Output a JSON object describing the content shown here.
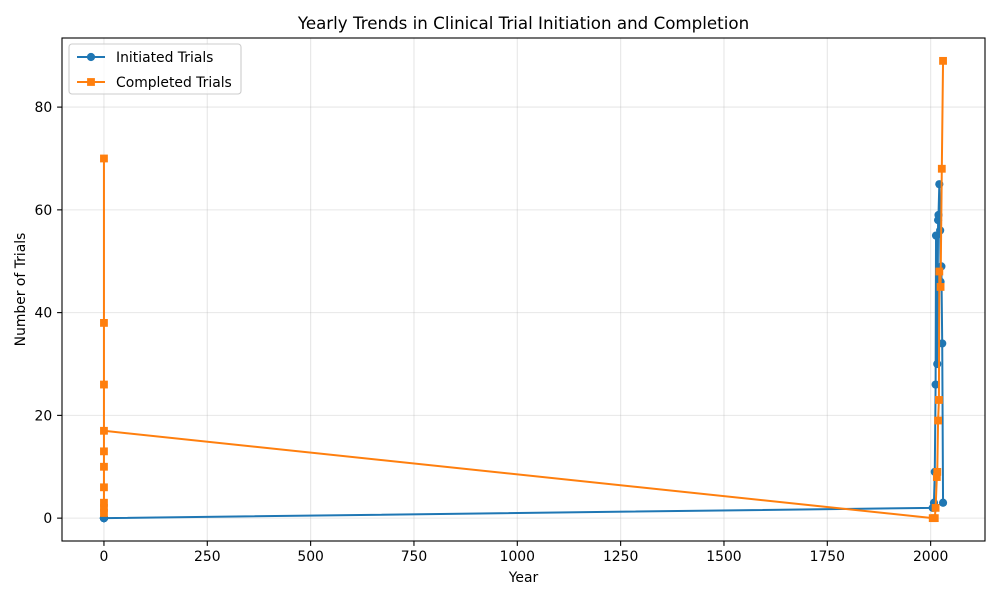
{
  "chart_data": {
    "type": "line",
    "title": "Yearly Trends in Clinical Trial Initiation and Completion",
    "xlabel": "Year",
    "ylabel": "Number of Trials",
    "xlim": [
      -101.5,
      2131.5
    ],
    "ylim": [
      -4.45,
      93.45
    ],
    "xticks": [
      0,
      250,
      500,
      750,
      1000,
      1250,
      1500,
      1750,
      2000
    ],
    "yticks": [
      0,
      20,
      40,
      60,
      80
    ],
    "grid": true,
    "legend_position": "top-left",
    "series": [
      {
        "name": "Initiated Trials",
        "color": "#1f77b4",
        "marker": "circle",
        "x": [
          0,
          0,
          0,
          0,
          0,
          0,
          0,
          0,
          0,
          0,
          2005,
          2008,
          2010,
          2012,
          2013,
          2016,
          2018,
          2019,
          2021,
          2023,
          2024,
          2026,
          2028,
          2030
        ],
        "y": [
          0,
          0,
          0,
          0,
          0,
          0,
          0,
          0,
          0,
          0,
          2,
          3,
          9,
          26,
          55,
          30,
          58,
          59,
          65,
          56,
          46,
          49,
          34,
          3
        ]
      },
      {
        "name": "Completed Trials",
        "color": "#ff7f0e",
        "marker": "square",
        "x": [
          0,
          0,
          0,
          0,
          0,
          0,
          0,
          0,
          0,
          0,
          2005,
          2010,
          2012,
          2015,
          2016,
          2018,
          2020,
          2021,
          2024,
          2027,
          2030
        ],
        "y": [
          1,
          2,
          3,
          6,
          10,
          13,
          26,
          38,
          70,
          17,
          0,
          0,
          2,
          8,
          9,
          19,
          23,
          48,
          45,
          68,
          89
        ]
      }
    ]
  }
}
